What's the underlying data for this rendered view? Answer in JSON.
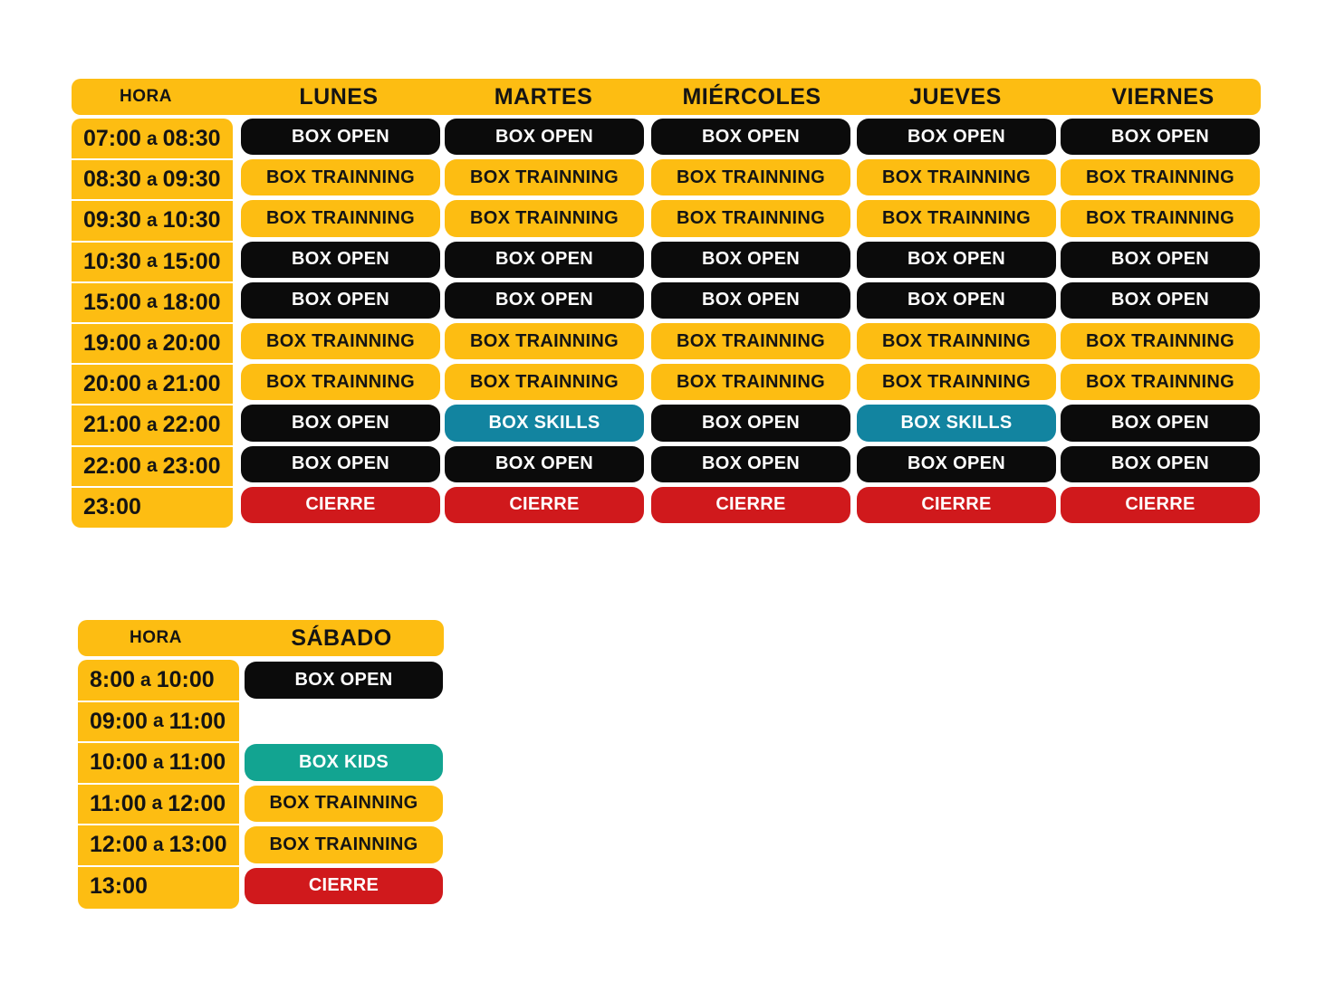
{
  "weekday_schedule": {
    "header": {
      "hora_label": "HORA",
      "days": [
        "LUNES",
        "MARTES",
        "MIÉRCOLES",
        "JUEVES",
        "VIERNES"
      ]
    },
    "rows": [
      {
        "start": "07:00",
        "sep": "a",
        "end": "08:30",
        "classes": [
          "BOX OPEN",
          "BOX OPEN",
          "BOX OPEN",
          "BOX OPEN",
          "BOX OPEN"
        ],
        "kinds": [
          "open",
          "open",
          "open",
          "open",
          "open"
        ]
      },
      {
        "start": "08:30",
        "sep": "a",
        "end": "09:30",
        "classes": [
          "BOX TRAINNING",
          "BOX TRAINNING",
          "BOX TRAINNING",
          "BOX TRAINNING",
          "BOX TRAINNING"
        ],
        "kinds": [
          "trainning",
          "trainning",
          "trainning",
          "trainning",
          "trainning"
        ]
      },
      {
        "start": "09:30",
        "sep": "a",
        "end": "10:30",
        "classes": [
          "BOX TRAINNING",
          "BOX TRAINNING",
          "BOX TRAINNING",
          "BOX TRAINNING",
          "BOX TRAINNING"
        ],
        "kinds": [
          "trainning",
          "trainning",
          "trainning",
          "trainning",
          "trainning"
        ]
      },
      {
        "start": "10:30",
        "sep": "a",
        "end": "15:00",
        "classes": [
          "BOX OPEN",
          "BOX OPEN",
          "BOX OPEN",
          "BOX OPEN",
          "BOX OPEN"
        ],
        "kinds": [
          "open",
          "open",
          "open",
          "open",
          "open"
        ]
      },
      {
        "start": "15:00",
        "sep": "a",
        "end": "18:00",
        "classes": [
          "BOX OPEN",
          "BOX OPEN",
          "BOX OPEN",
          "BOX OPEN",
          "BOX OPEN"
        ],
        "kinds": [
          "open",
          "open",
          "open",
          "open",
          "open"
        ]
      },
      {
        "start": "19:00",
        "sep": "a",
        "end": "20:00",
        "classes": [
          "BOX TRAINNING",
          "BOX TRAINNING",
          "BOX TRAINNING",
          "BOX TRAINNING",
          "BOX TRAINNING"
        ],
        "kinds": [
          "trainning",
          "trainning",
          "trainning",
          "trainning",
          "trainning"
        ]
      },
      {
        "start": "20:00",
        "sep": "a",
        "end": "21:00",
        "classes": [
          "BOX TRAINNING",
          "BOX TRAINNING",
          "BOX TRAINNING",
          "BOX TRAINNING",
          "BOX TRAINNING"
        ],
        "kinds": [
          "trainning",
          "trainning",
          "trainning",
          "trainning",
          "trainning"
        ]
      },
      {
        "start": "21:00",
        "sep": "a",
        "end": "22:00",
        "classes": [
          "BOX OPEN",
          "BOX SKILLS",
          "BOX OPEN",
          "BOX SKILLS",
          "BOX OPEN"
        ],
        "kinds": [
          "open",
          "skills",
          "open",
          "skills",
          "open"
        ]
      },
      {
        "start": "22:00",
        "sep": "a",
        "end": "23:00",
        "classes": [
          "BOX OPEN",
          "BOX OPEN",
          "BOX OPEN",
          "BOX OPEN",
          "BOX OPEN"
        ],
        "kinds": [
          "open",
          "open",
          "open",
          "open",
          "open"
        ]
      },
      {
        "start": "23:00",
        "sep": "",
        "end": "",
        "classes": [
          "CIERRE",
          "CIERRE",
          "CIERRE",
          "CIERRE",
          "CIERRE"
        ],
        "kinds": [
          "cierre",
          "cierre",
          "cierre",
          "cierre",
          "cierre"
        ]
      }
    ]
  },
  "saturday_schedule": {
    "header": {
      "hora_label": "HORA",
      "days": [
        "SÁBADO"
      ]
    },
    "rows": [
      {
        "start": "8:00",
        "sep": "a",
        "end": "10:00",
        "classes": [
          "BOX OPEN"
        ],
        "kinds": [
          "open"
        ]
      },
      {
        "start": "09:00",
        "sep": "a",
        "end": "11:00",
        "classes": [
          ""
        ],
        "kinds": [
          "empty"
        ]
      },
      {
        "start": "10:00",
        "sep": "a",
        "end": "11:00",
        "classes": [
          "BOX KIDS"
        ],
        "kinds": [
          "kids"
        ]
      },
      {
        "start": "11:00",
        "sep": "a",
        "end": "12:00",
        "classes": [
          "BOX TRAINNING"
        ],
        "kinds": [
          "trainning"
        ]
      },
      {
        "start": "12:00",
        "sep": "a",
        "end": "13:00",
        "classes": [
          "BOX TRAINNING"
        ],
        "kinds": [
          "trainning"
        ]
      },
      {
        "start": "13:00",
        "sep": "",
        "end": "",
        "classes": [
          "CIERRE"
        ],
        "kinds": [
          "cierre"
        ]
      }
    ]
  },
  "colors": {
    "yellow": "#fdbd12",
    "black": "#0b0b0b",
    "skills_blue": "#1284a0",
    "kids_teal": "#12a491",
    "cierre_red": "#d0191c"
  }
}
